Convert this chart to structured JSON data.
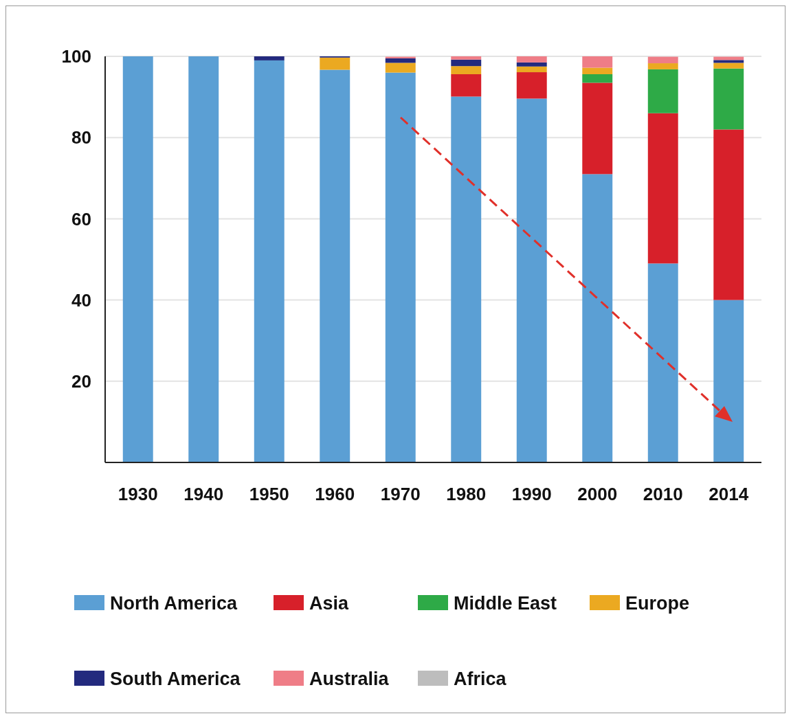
{
  "chart_data": {
    "type": "bar",
    "stacked": true,
    "categories": [
      "1930",
      "1940",
      "1950",
      "1960",
      "1970",
      "1980",
      "1990",
      "2000",
      "2010",
      "2014"
    ],
    "series": [
      {
        "name": "North America",
        "color": "#5b9fd4",
        "values": [
          100,
          100,
          99,
          96.7,
          96,
          90.1,
          89.6,
          71,
          49,
          40
        ]
      },
      {
        "name": "Asia",
        "color": "#d7202a",
        "values": [
          0,
          0,
          0,
          0,
          0,
          5.5,
          6.5,
          22.5,
          37,
          42
        ]
      },
      {
        "name": "Middle East",
        "color": "#2eaa47",
        "values": [
          0,
          0,
          0,
          0,
          0,
          0,
          0,
          2.1,
          10.8,
          15
        ]
      },
      {
        "name": "Europe",
        "color": "#eba921",
        "values": [
          0,
          0,
          0,
          3,
          2.4,
          2,
          1.4,
          1.6,
          1.5,
          1.4
        ]
      },
      {
        "name": "South America",
        "color": "#232a7e",
        "values": [
          0,
          0,
          1,
          0.3,
          1.1,
          1.6,
          1,
          0,
          0,
          0.7
        ]
      },
      {
        "name": "Australia",
        "color": "#ef7d87",
        "values": [
          0,
          0,
          0,
          0,
          0.4,
          0.8,
          1.5,
          2.8,
          1.6,
          0.8
        ]
      },
      {
        "name": "Africa",
        "color": "#bdbdbd",
        "values": [
          0,
          0,
          0,
          0,
          0,
          0,
          0,
          0,
          0,
          0
        ]
      }
    ],
    "ylim": [
      0,
      100
    ],
    "yticks": [
      20,
      40,
      60,
      80,
      100
    ],
    "grid": "y",
    "legend": "bottom"
  }
}
